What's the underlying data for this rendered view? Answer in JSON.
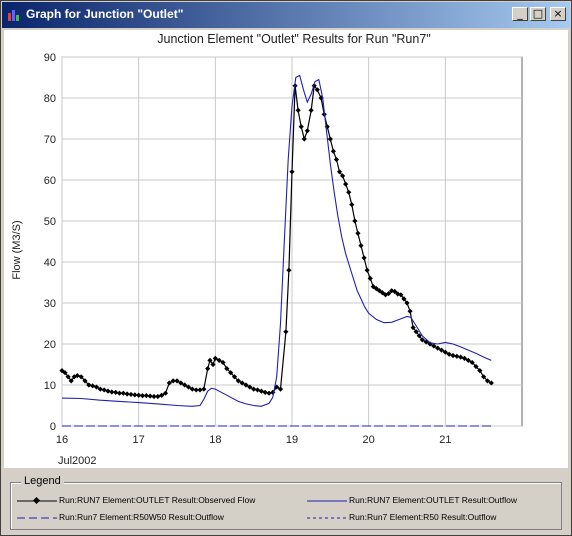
{
  "window": {
    "title": "Graph for Junction \"Outlet\"",
    "minimize_glyph": "_",
    "maximize_glyph": "□",
    "close_glyph": "×"
  },
  "legend": {
    "title": "Legend",
    "items": [
      {
        "label": "Run:RUN7 Element:OUTLET Result:Observed Flow",
        "color": "#000000",
        "style": "solid-diamond"
      },
      {
        "label": "Run:RUN7 Element:OUTLET Result:Outflow",
        "color": "#2020b0",
        "style": "solid"
      },
      {
        "label": "Run:Run7 Element:R50W50 Result:Outflow",
        "color": "#2020b0",
        "style": "long-dash"
      },
      {
        "label": "Run:Run7 Element:R50 Result:Outflow",
        "color": "#2020b0",
        "style": "short-dash"
      }
    ]
  },
  "chart_data": {
    "type": "line",
    "title": "Junction Element \"Outlet\" Results for Run \"Run7\"",
    "ylabel": "Flow (M3/S)",
    "xlabel": "Jul2002",
    "xlim": [
      16,
      22
    ],
    "ylim": [
      0,
      90
    ],
    "x_ticks": [
      "16",
      "17",
      "18",
      "19",
      "20",
      "21"
    ],
    "y_ticks": [
      0,
      10,
      20,
      30,
      40,
      50,
      60,
      70,
      80,
      90
    ],
    "grid": true,
    "series": [
      {
        "name": "Run:RUN7 Element:OUTLET Result:Observed Flow",
        "color": "#000000",
        "markers": true,
        "points": [
          [
            16.0,
            13.5
          ],
          [
            16.04,
            13.0
          ],
          [
            16.08,
            12.0
          ],
          [
            16.12,
            11.0
          ],
          [
            16.16,
            12.0
          ],
          [
            16.2,
            12.3
          ],
          [
            16.25,
            12.0
          ],
          [
            16.3,
            11.0
          ],
          [
            16.35,
            10.0
          ],
          [
            16.4,
            9.8
          ],
          [
            16.45,
            9.5
          ],
          [
            16.5,
            9.0
          ],
          [
            16.55,
            8.8
          ],
          [
            16.6,
            8.5
          ],
          [
            16.65,
            8.3
          ],
          [
            16.7,
            8.2
          ],
          [
            16.75,
            8.0
          ],
          [
            16.8,
            8.0
          ],
          [
            16.85,
            7.8
          ],
          [
            16.9,
            7.7
          ],
          [
            16.95,
            7.6
          ],
          [
            17.0,
            7.5
          ],
          [
            17.05,
            7.4
          ],
          [
            17.1,
            7.4
          ],
          [
            17.15,
            7.3
          ],
          [
            17.2,
            7.2
          ],
          [
            17.25,
            7.2
          ],
          [
            17.3,
            7.5
          ],
          [
            17.35,
            8.0
          ],
          [
            17.4,
            10.5
          ],
          [
            17.45,
            11.0
          ],
          [
            17.5,
            11.0
          ],
          [
            17.55,
            10.5
          ],
          [
            17.6,
            10.0
          ],
          [
            17.65,
            9.5
          ],
          [
            17.7,
            9.0
          ],
          [
            17.75,
            8.8
          ],
          [
            17.8,
            8.8
          ],
          [
            17.85,
            9.0
          ],
          [
            17.9,
            14.0
          ],
          [
            17.93,
            16.0
          ],
          [
            17.97,
            15.0
          ],
          [
            18.0,
            16.5
          ],
          [
            18.05,
            16.0
          ],
          [
            18.1,
            15.5
          ],
          [
            18.15,
            14.0
          ],
          [
            18.2,
            13.0
          ],
          [
            18.25,
            12.0
          ],
          [
            18.3,
            11.0
          ],
          [
            18.35,
            10.5
          ],
          [
            18.4,
            10.0
          ],
          [
            18.45,
            9.5
          ],
          [
            18.5,
            9.0
          ],
          [
            18.55,
            8.8
          ],
          [
            18.6,
            8.5
          ],
          [
            18.65,
            8.2
          ],
          [
            18.7,
            8.0
          ],
          [
            18.75,
            8.2
          ],
          [
            18.8,
            9.5
          ],
          [
            18.85,
            9.0
          ],
          [
            18.92,
            23.0
          ],
          [
            18.96,
            38.0
          ],
          [
            19.0,
            62.0
          ],
          [
            19.04,
            83.0
          ],
          [
            19.08,
            77.0
          ],
          [
            19.12,
            73.0
          ],
          [
            19.16,
            70.0
          ],
          [
            19.2,
            72.0
          ],
          [
            19.25,
            77.0
          ],
          [
            19.29,
            83.0
          ],
          [
            19.33,
            82.0
          ],
          [
            19.38,
            80.0
          ],
          [
            19.42,
            76.0
          ],
          [
            19.46,
            73.0
          ],
          [
            19.5,
            70.0
          ],
          [
            19.54,
            67.0
          ],
          [
            19.58,
            65.0
          ],
          [
            19.62,
            62.0
          ],
          [
            19.66,
            61.0
          ],
          [
            19.7,
            59.0
          ],
          [
            19.74,
            57.0
          ],
          [
            19.78,
            54.0
          ],
          [
            19.82,
            50.0
          ],
          [
            19.86,
            47.0
          ],
          [
            19.9,
            44.0
          ],
          [
            19.94,
            41.0
          ],
          [
            19.98,
            38.0
          ],
          [
            20.02,
            36.0
          ],
          [
            20.06,
            34.0
          ],
          [
            20.1,
            33.5
          ],
          [
            20.14,
            33.0
          ],
          [
            20.18,
            32.5
          ],
          [
            20.22,
            32.0
          ],
          [
            20.26,
            32.3
          ],
          [
            20.3,
            33.0
          ],
          [
            20.34,
            32.8
          ],
          [
            20.38,
            32.2
          ],
          [
            20.42,
            32.0
          ],
          [
            20.46,
            31.0
          ],
          [
            20.5,
            30.0
          ],
          [
            20.54,
            28.0
          ],
          [
            20.58,
            24.0
          ],
          [
            20.62,
            23.0
          ],
          [
            20.66,
            22.0
          ],
          [
            20.7,
            21.0
          ],
          [
            20.75,
            20.5
          ],
          [
            20.8,
            20.0
          ],
          [
            20.85,
            19.5
          ],
          [
            20.9,
            19.0
          ],
          [
            20.95,
            18.5
          ],
          [
            21.0,
            18.0
          ],
          [
            21.05,
            17.5
          ],
          [
            21.1,
            17.2
          ],
          [
            21.15,
            17.0
          ],
          [
            21.2,
            16.8
          ],
          [
            21.25,
            16.5
          ],
          [
            21.3,
            16.0
          ],
          [
            21.35,
            15.5
          ],
          [
            21.4,
            14.5
          ],
          [
            21.45,
            13.5
          ],
          [
            21.5,
            12.0
          ],
          [
            21.55,
            11.0
          ],
          [
            21.6,
            10.5
          ]
        ]
      },
      {
        "name": "Run:RUN7 Element:OUTLET Result:Outflow",
        "color": "#2020b0",
        "markers": false,
        "points": [
          [
            16.0,
            6.8
          ],
          [
            16.25,
            6.7
          ],
          [
            16.5,
            6.3
          ],
          [
            16.75,
            6.0
          ],
          [
            17.0,
            5.7
          ],
          [
            17.25,
            5.4
          ],
          [
            17.5,
            5.0
          ],
          [
            17.7,
            4.8
          ],
          [
            17.8,
            5.0
          ],
          [
            17.85,
            6.5
          ],
          [
            17.9,
            8.5
          ],
          [
            17.95,
            9.2
          ],
          [
            18.0,
            9.0
          ],
          [
            18.1,
            8.0
          ],
          [
            18.2,
            7.0
          ],
          [
            18.3,
            6.0
          ],
          [
            18.4,
            5.4
          ],
          [
            18.5,
            5.0
          ],
          [
            18.6,
            4.8
          ],
          [
            18.7,
            5.5
          ],
          [
            18.75,
            7.0
          ],
          [
            18.8,
            12.0
          ],
          [
            18.85,
            25.0
          ],
          [
            18.9,
            45.0
          ],
          [
            18.95,
            65.0
          ],
          [
            19.0,
            78.0
          ],
          [
            19.05,
            85.0
          ],
          [
            19.1,
            85.5
          ],
          [
            19.15,
            82.0
          ],
          [
            19.2,
            79.0
          ],
          [
            19.25,
            81.0
          ],
          [
            19.3,
            84.0
          ],
          [
            19.35,
            84.5
          ],
          [
            19.4,
            80.0
          ],
          [
            19.45,
            72.0
          ],
          [
            19.5,
            64.0
          ],
          [
            19.55,
            57.0
          ],
          [
            19.6,
            51.0
          ],
          [
            19.65,
            46.0
          ],
          [
            19.7,
            42.0
          ],
          [
            19.75,
            39.0
          ],
          [
            19.8,
            36.0
          ],
          [
            19.85,
            33.0
          ],
          [
            19.9,
            31.0
          ],
          [
            19.95,
            29.0
          ],
          [
            20.0,
            27.5
          ],
          [
            20.1,
            26.0
          ],
          [
            20.2,
            25.2
          ],
          [
            20.3,
            25.3
          ],
          [
            20.4,
            26.0
          ],
          [
            20.5,
            26.7
          ],
          [
            20.55,
            26.5
          ],
          [
            20.6,
            25.0
          ],
          [
            20.7,
            22.0
          ],
          [
            20.8,
            20.3
          ],
          [
            20.9,
            20.0
          ],
          [
            21.0,
            20.4
          ],
          [
            21.1,
            20.0
          ],
          [
            21.2,
            19.3
          ],
          [
            21.3,
            18.5
          ],
          [
            21.4,
            17.7
          ],
          [
            21.5,
            16.8
          ],
          [
            21.6,
            16.0
          ]
        ]
      },
      {
        "name": "Run:Run7 Element:R50W50 Result:Outflow",
        "color": "#2020b0",
        "markers": false,
        "points": [
          [
            16.0,
            0.0
          ],
          [
            21.6,
            0.0
          ]
        ]
      },
      {
        "name": "Run:Run7 Element:R50 Result:Outflow",
        "color": "#2020b0",
        "markers": false,
        "points": [
          [
            16.0,
            0.0
          ],
          [
            21.6,
            0.0
          ]
        ]
      }
    ]
  }
}
